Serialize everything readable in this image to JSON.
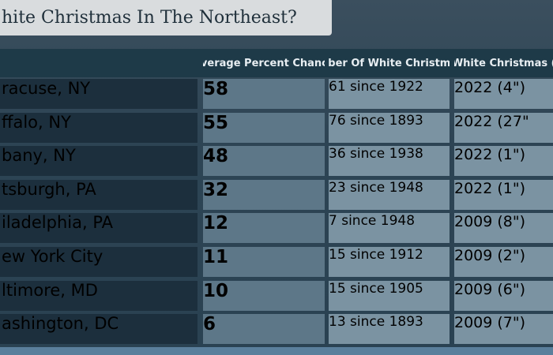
{
  "header": {
    "title": "hite Christmas In The Northeast?"
  },
  "table": {
    "columns": [
      "Average Percent Chance",
      "Number Of White Christmases",
      "Last White Christmas (Dept"
    ],
    "rows": [
      [
        "racuse, NY",
        58,
        "61 since 1922",
        "2022 (4\")"
      ],
      [
        "ffalo, NY",
        55,
        "76 since 1893",
        "2022 (27\""
      ],
      [
        "bany, NY",
        48,
        "36 since 1938",
        "2022 (1\")"
      ],
      [
        "tsburgh, PA",
        32,
        "23 since 1948",
        "2022 (1\")"
      ],
      [
        "iladelphia, PA",
        12,
        "7 since 1948",
        "2009 (8\")"
      ],
      [
        "ew York City",
        11,
        "15 since 1912",
        "2009 (2\")"
      ],
      [
        "ltimore, MD",
        10,
        "15 since 1905",
        "2009 (6\")"
      ],
      [
        "ashington, DC",
        6,
        "13 since 1893",
        "2009 (7\")"
      ]
    ]
  }
}
